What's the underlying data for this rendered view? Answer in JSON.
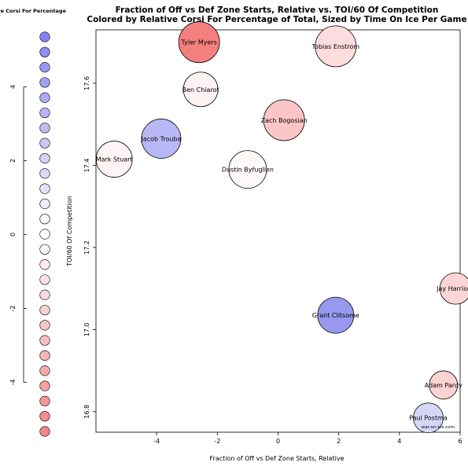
{
  "chart_data": {
    "type": "scatter",
    "title": "Fraction of Off vs Def Zone Starts, Relative vs. TOI/60 Of Competition",
    "subtitle": "Colored by Relative Corsi For Percentage of Total, Sized by Time On Ice Per Game",
    "xlabel": "Fraction of Off vs Def Zone Starts, Relative",
    "ylabel": "TOI/60 Of Competition",
    "xlim": [
      -6.0,
      6.0
    ],
    "ylim": [
      16.75,
      17.73
    ],
    "x_ticks": [
      -4,
      -2,
      0,
      2,
      4,
      6
    ],
    "y_ticks": [
      16.8,
      17.0,
      17.2,
      17.4,
      17.6
    ],
    "grid": false,
    "watermark": "war-on-ice.com",
    "points": [
      {
        "label": "Tyler Myers",
        "x": -2.6,
        "y": 17.7,
        "color": "#f47f7f",
        "radius": 26
      },
      {
        "label": "Tobias Enstrom",
        "x": 1.9,
        "y": 17.69,
        "color": "#fcdcdc",
        "radius": 26
      },
      {
        "label": "Ben Chiarot",
        "x": -2.55,
        "y": 17.585,
        "color": "#fdf3f3",
        "radius": 22
      },
      {
        "label": "Zach Bogosian",
        "x": 0.2,
        "y": 17.51,
        "color": "#fcc6c6",
        "radius": 26
      },
      {
        "label": "Jacob Trouba",
        "x": -3.85,
        "y": 17.465,
        "color": "#b8b8f7",
        "radius": 25
      },
      {
        "label": "Mark Stuart",
        "x": -5.4,
        "y": 17.415,
        "color": "#fef4f4",
        "radius": 23
      },
      {
        "label": "Dustin Byfuglien",
        "x": -1.0,
        "y": 17.39,
        "color": "#fef8f8",
        "radius": 24
      },
      {
        "label": "Jay Harrison",
        "x": 5.85,
        "y": 17.1,
        "color": "#fcd6d6",
        "radius": 20
      },
      {
        "label": "Grant Clitsome",
        "x": 1.9,
        "y": 17.035,
        "color": "#9898f0",
        "radius": 23
      },
      {
        "label": "Adam Pardy",
        "x": 5.45,
        "y": 16.865,
        "color": "#fcd2d2",
        "radius": 18
      },
      {
        "label": "Paul Postma",
        "x": 4.95,
        "y": 16.785,
        "color": "#d6d6f7",
        "radius": 19
      }
    ]
  },
  "legend": {
    "title": "Relative Corsi For Percentage",
    "ticks": [
      4,
      2,
      0,
      -2,
      -4
    ],
    "colors": [
      "#8585f1",
      "#8e8ef2",
      "#9898f3",
      "#a1a1f4",
      "#abab f5",
      "#b4b4f6",
      "#bebef7",
      "#c7c7f8",
      "#d1d1f9",
      "#dadafa",
      "#e3e3fb",
      "#ededfc",
      "#f6f6fe",
      "#ffffff",
      "#fef6f6",
      "#fdeded",
      "#fce3e3",
      "#fbdada",
      "#fad1d1",
      "#f9c7c7",
      "#f8bebe",
      "#f7b4b4",
      "#f6abab",
      "#f5a1a1",
      "#f49898",
      "#f38e8e",
      "#f28585"
    ]
  }
}
